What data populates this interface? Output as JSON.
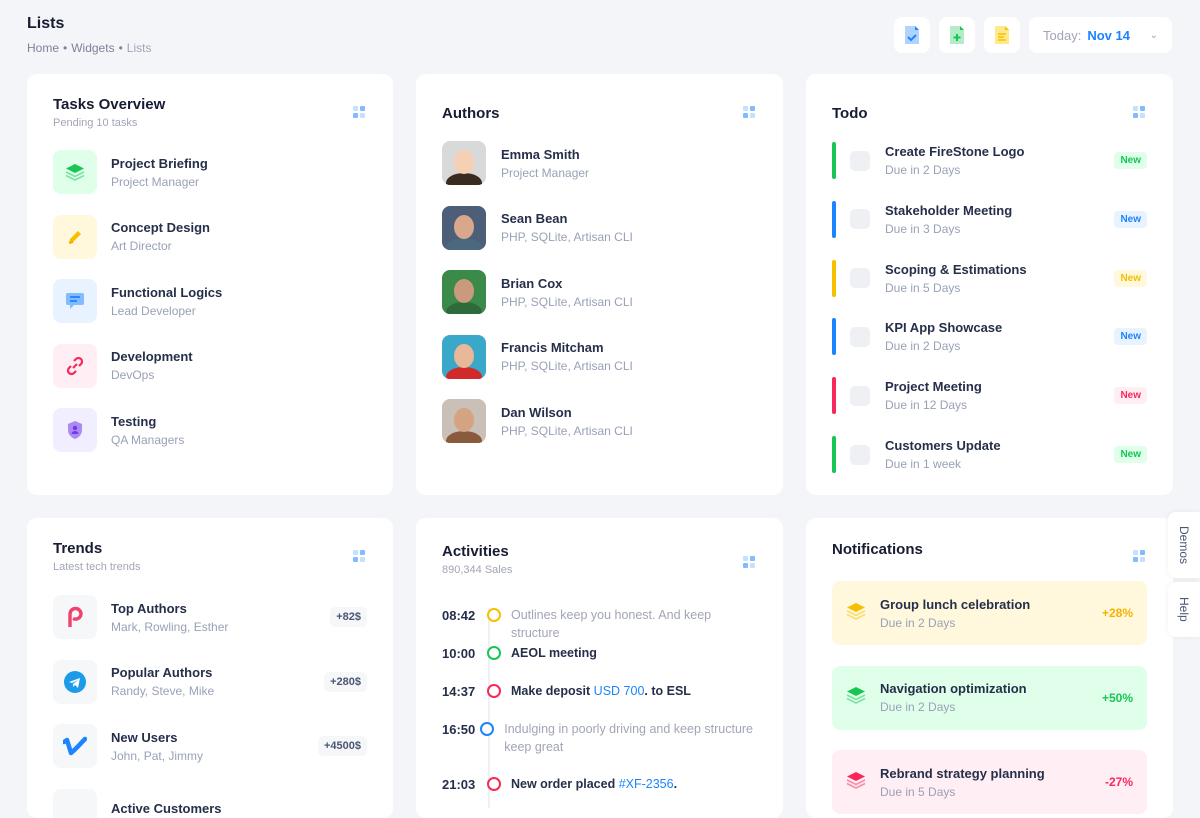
{
  "header": {
    "title": "Lists",
    "breadcrumb": [
      "Home",
      "Widgets",
      "Lists"
    ],
    "date_label": "Today:",
    "date_value": "Nov 14"
  },
  "tasks": {
    "title": "Tasks Overview",
    "subtitle": "Pending 10 tasks",
    "items": [
      {
        "title": "Project Briefing",
        "sub": "Project Manager",
        "icon": "layers-icon",
        "color": "#17c653",
        "bg": "#dfffea"
      },
      {
        "title": "Concept Design",
        "sub": "Art Director",
        "icon": "pencil-icon",
        "color": "#f6c000",
        "bg": "#fff8dd"
      },
      {
        "title": "Functional Logics",
        "sub": "Lead Developer",
        "icon": "message-icon",
        "color": "#1b84ff",
        "bg": "#e9f3ff"
      },
      {
        "title": "Development",
        "sub": "DevOps",
        "icon": "link-icon",
        "color": "#f8285a",
        "bg": "#ffeef3"
      },
      {
        "title": "Testing",
        "sub": "QA Managers",
        "icon": "shield-user-icon",
        "color": "#7239ea",
        "bg": "#f1eeff"
      }
    ]
  },
  "authors": {
    "title": "Authors",
    "items": [
      {
        "name": "Emma Smith",
        "sub": "Project Manager"
      },
      {
        "name": "Sean Bean",
        "sub": "PHP, SQLite, Artisan CLI"
      },
      {
        "name": "Brian Cox",
        "sub": "PHP, SQLite, Artisan CLI"
      },
      {
        "name": "Francis Mitcham",
        "sub": "PHP, SQLite, Artisan CLI"
      },
      {
        "name": "Dan Wilson",
        "sub": "PHP, SQLite, Artisan CLI"
      }
    ]
  },
  "todo": {
    "title": "Todo",
    "items": [
      {
        "title": "Create FireStone Logo",
        "sub": "Due in 2 Days",
        "badge": "New",
        "color": "#17c653",
        "bg": "#dfffea"
      },
      {
        "title": "Stakeholder Meeting",
        "sub": "Due in 3 Days",
        "badge": "New",
        "color": "#1b84ff",
        "bg": "#e9f3ff"
      },
      {
        "title": "Scoping & Estimations",
        "sub": "Due in 5 Days",
        "badge": "New",
        "color": "#f6c000",
        "bg": "#fff8dd"
      },
      {
        "title": "KPI App Showcase",
        "sub": "Due in 2 Days",
        "badge": "New",
        "color": "#1b84ff",
        "bg": "#e9f3ff"
      },
      {
        "title": "Project Meeting",
        "sub": "Due in 12 Days",
        "badge": "New",
        "color": "#f8285a",
        "bg": "#ffeef3"
      },
      {
        "title": "Customers Update",
        "sub": "Due in 1 week",
        "badge": "New",
        "color": "#17c653",
        "bg": "#dfffea"
      }
    ]
  },
  "trends": {
    "title": "Trends",
    "subtitle": "Latest tech trends",
    "items": [
      {
        "title": "Top Authors",
        "sub": "Mark, Rowling, Esther",
        "amount": "+82$",
        "icon": "pinterest-icon"
      },
      {
        "title": "Popular Authors",
        "sub": "Randy, Steve, Mike",
        "amount": "+280$",
        "icon": "telegram-icon"
      },
      {
        "title": "New Users",
        "sub": "John, Pat, Jimmy",
        "amount": "+4500$",
        "icon": "vimeo-icon"
      },
      {
        "title": "Active Customers",
        "sub": "",
        "amount": "",
        "icon": "app-icon"
      }
    ]
  },
  "activities": {
    "title": "Activities",
    "subtitle": "890,344 Sales",
    "items": [
      {
        "time": "08:42",
        "color": "#f6c000",
        "pre": "Outlines keep you honest. And keep structure",
        "link": "",
        "post": "",
        "muted": true
      },
      {
        "time": "10:00",
        "color": "#17c653",
        "pre": "AEOL meeting",
        "link": "",
        "post": "",
        "muted": false
      },
      {
        "time": "14:37",
        "color": "#f8285a",
        "pre": "Make deposit ",
        "link": "USD 700",
        "post": ". to ESL",
        "muted": false
      },
      {
        "time": "16:50",
        "color": "#1b84ff",
        "pre": "Indulging in poorly driving and keep structure keep great",
        "link": "",
        "post": "",
        "muted": true
      },
      {
        "time": "21:03",
        "color": "#f8285a",
        "pre": "New order placed ",
        "link": "#XF-2356",
        "post": ".",
        "muted": false
      }
    ]
  },
  "notifications": {
    "title": "Notifications",
    "items": [
      {
        "title": "Group lunch celebration",
        "sub": "Due in 2 Days",
        "pct": "+28%",
        "color": "#f6c000",
        "bg": "#fff8dd"
      },
      {
        "title": "Navigation optimization",
        "sub": "Due in 2 Days",
        "pct": "+50%",
        "color": "#17c653",
        "bg": "#dfffea"
      },
      {
        "title": "Rebrand strategy planning",
        "sub": "Due in 5 Days",
        "pct": "-27%",
        "color": "#f8285a",
        "bg": "#ffeef3"
      }
    ]
  },
  "side": {
    "demos": "Demos",
    "help": "Help"
  }
}
